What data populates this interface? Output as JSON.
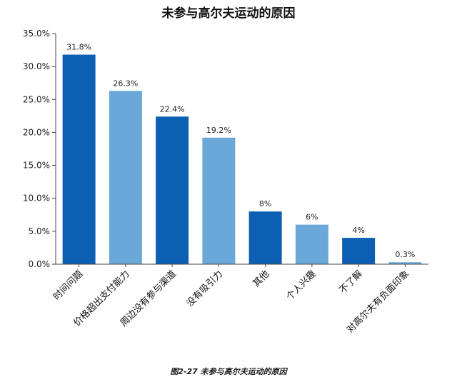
{
  "title": "未参与高尔夫运动的原因",
  "caption": "图2-27 未参与高尔夫运动的原因",
  "colors": {
    "dark": "#0d5fb3",
    "light": "#6aa8da"
  },
  "chart_data": {
    "type": "bar",
    "title": "未参与高尔夫运动的原因",
    "categories": [
      "时间问题",
      "价格超出支付能力",
      "周边没有参与渠道",
      "没有吸引力",
      "其他",
      "个人兴趣",
      "不了解",
      "对高尔夫有负面印象"
    ],
    "values": [
      31.8,
      26.3,
      22.4,
      19.2,
      8,
      6,
      4,
      0.3
    ],
    "data_labels": [
      "31.8%",
      "26.3%",
      "22.4%",
      "19.2%",
      "8%",
      "6%",
      "4%",
      "0.3%"
    ],
    "bar_colors": [
      "dark",
      "light",
      "dark",
      "light",
      "dark",
      "light",
      "dark",
      "light"
    ],
    "ylim": [
      0,
      35
    ],
    "yticks": [
      0,
      5,
      10,
      15,
      20,
      25,
      30,
      35
    ],
    "ytick_labels": [
      "0.0%",
      "5.0%",
      "10.0%",
      "15.0%",
      "20.0%",
      "25.0%",
      "30.0%",
      "35.0%"
    ],
    "xlabel": "",
    "ylabel": "",
    "grid": false
  }
}
